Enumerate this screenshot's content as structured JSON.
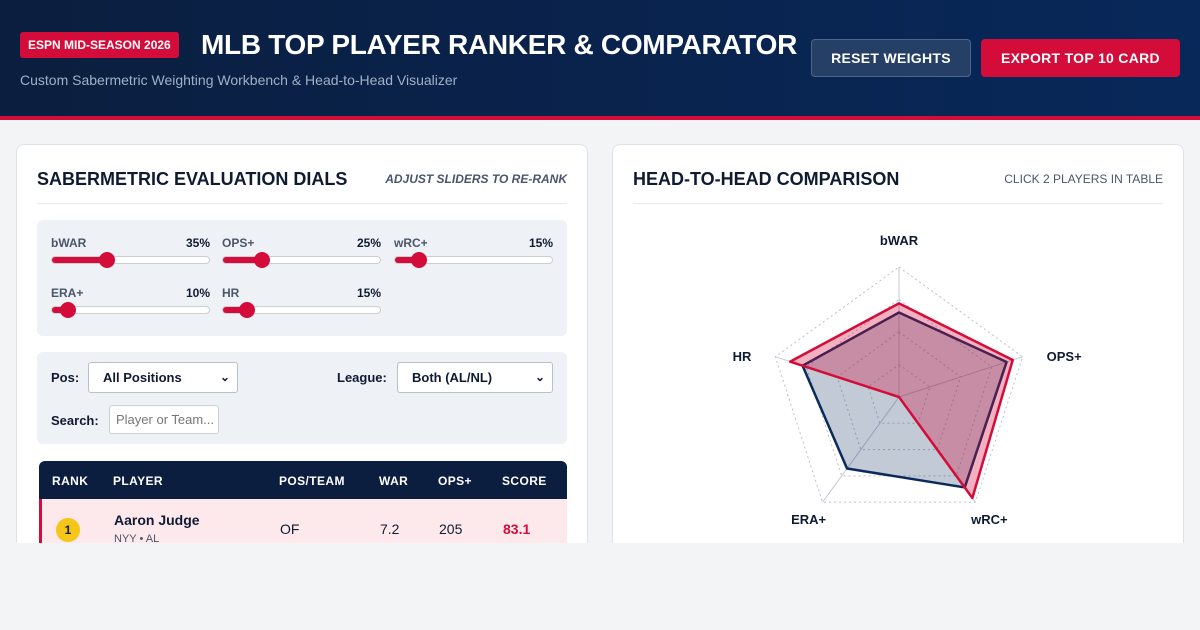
{
  "header": {
    "badge": "ESPN MID-SEASON 2026",
    "title": "MLB TOP PLAYER RANKER & COMPARATOR",
    "subtitle": "Custom Sabermetric Weighting Workbench & Head-to-Head Visualizer",
    "reset_label": "RESET WEIGHTS",
    "export_label": "EXPORT TOP 10 CARD"
  },
  "dials_panel": {
    "title": "SABERMETRIC EVALUATION DIALS",
    "hint": "ADJUST SLIDERS TO RE-RANK",
    "dials": [
      {
        "name": "bWAR",
        "value_label": "35%",
        "value": 0.35
      },
      {
        "name": "OPS+",
        "value_label": "25%",
        "value": 0.25
      },
      {
        "name": "wRC+",
        "value_label": "15%",
        "value": 0.15
      },
      {
        "name": "ERA+",
        "value_label": "10%",
        "value": 0.1
      },
      {
        "name": "HR",
        "value_label": "15%",
        "value": 0.15
      }
    ],
    "filters": {
      "pos_label": "Pos:",
      "pos_value": "All Positions",
      "league_label": "League:",
      "league_value": "Both (AL/NL)",
      "search_label": "Search:",
      "search_placeholder": "Player or Team..."
    },
    "table": {
      "columns": [
        "RANK",
        "PLAYER",
        "POS/TEAM",
        "WAR",
        "OPS+",
        "SCORE"
      ],
      "rows": [
        {
          "rank": "1",
          "player": "Aaron Judge",
          "sub": "NYY • AL",
          "pos": "OF",
          "war": "7.2",
          "ops": "205",
          "score": "83.1"
        }
      ]
    }
  },
  "compare_panel": {
    "title": "HEAD-TO-HEAD COMPARISON",
    "hint": "CLICK 2 PLAYERS IN TABLE",
    "axes": [
      "bWAR",
      "OPS+",
      "wRC+",
      "ERA+",
      "HR"
    ],
    "player_a_levels": [
      0.72,
      0.92,
      0.96,
      0.0,
      0.88
    ],
    "player_b_levels": [
      0.65,
      0.87,
      0.86,
      0.68,
      0.78
    ],
    "colors": {
      "player_a": "#d40c3a",
      "player_b": "#0b2a5b"
    }
  }
}
